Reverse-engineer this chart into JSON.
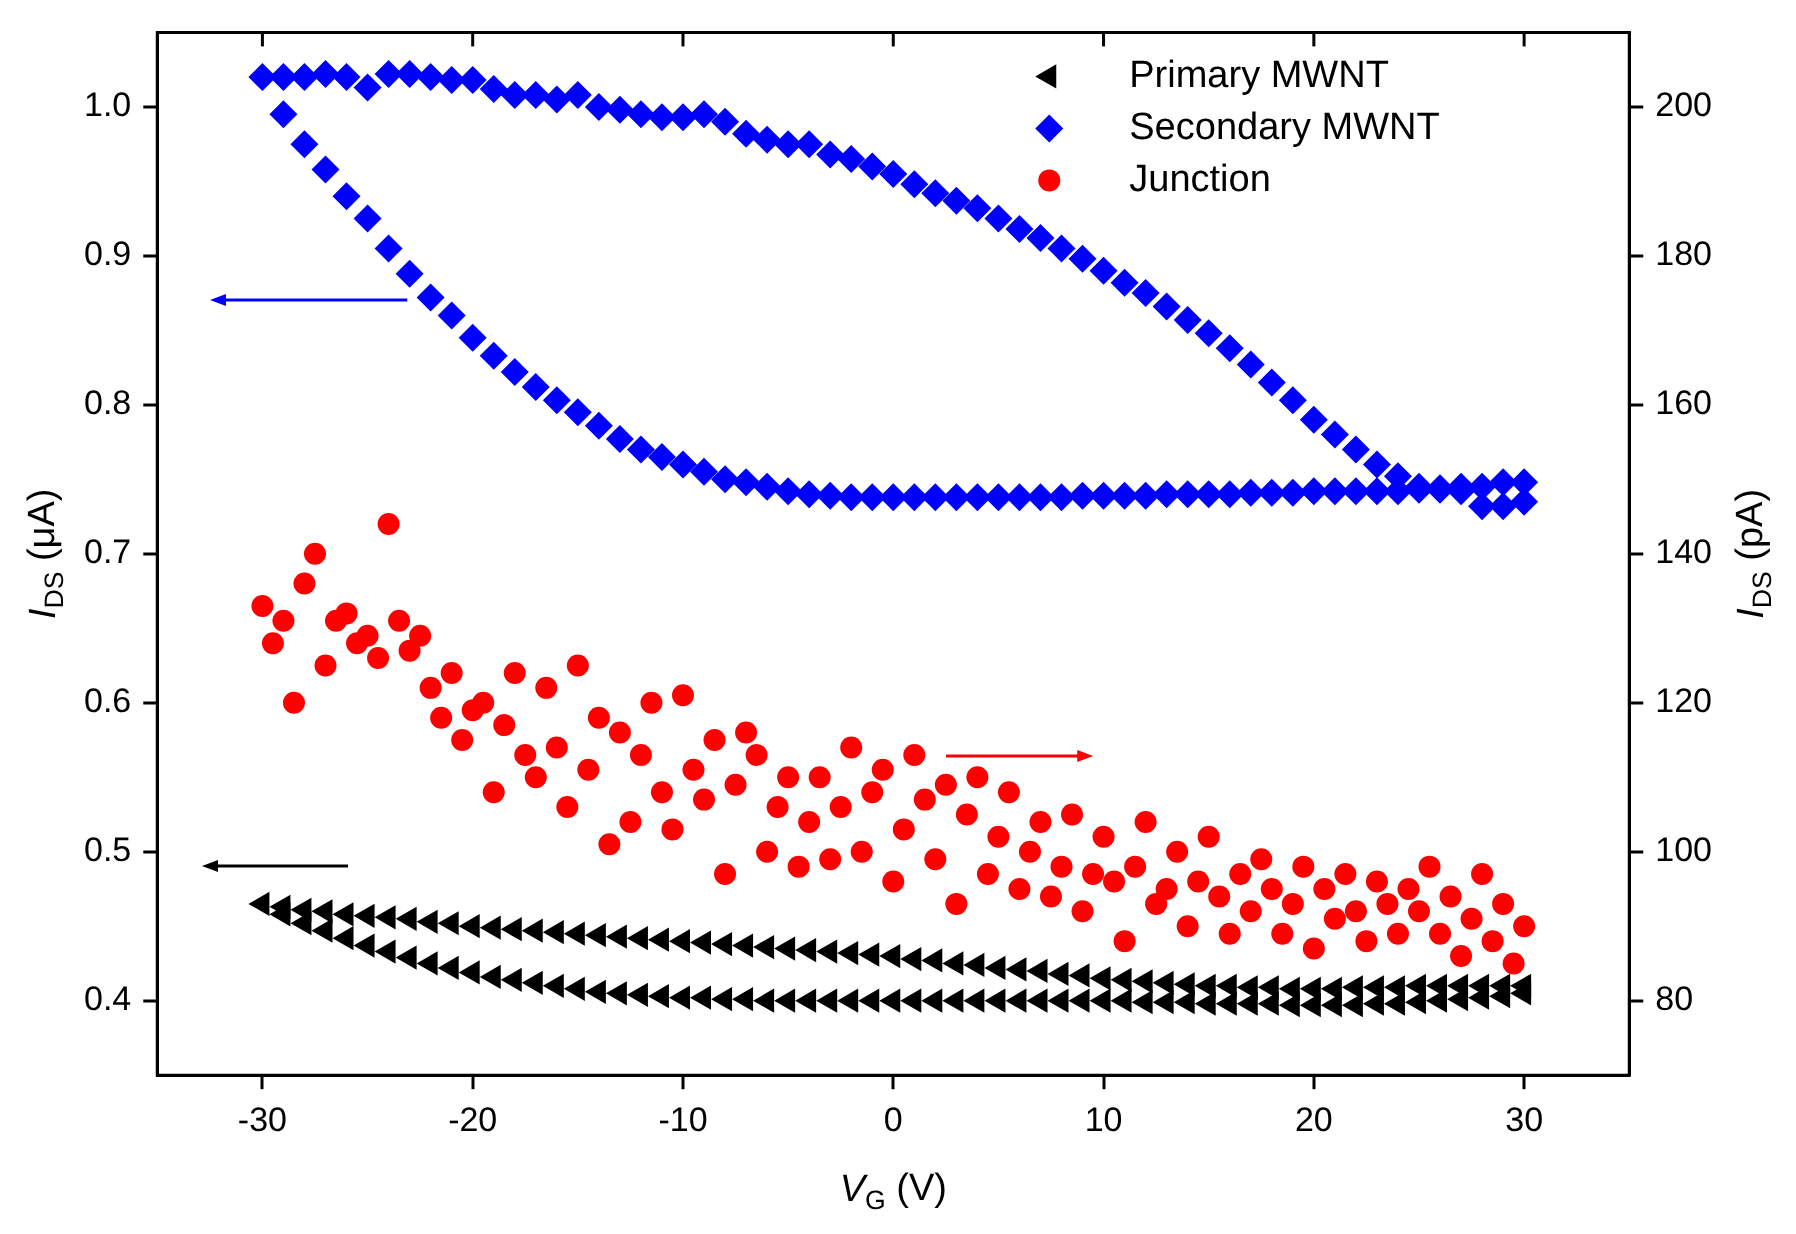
{
  "chart_data": {
    "type": "scatter",
    "xlabel": "V$_{G}$ (V)",
    "ylabel": "I$_{DS}$ (μA)",
    "y2label": "I$_{DS}$ (pA)",
    "xlim": [
      -35,
      35
    ],
    "xticks": [
      -30,
      -20,
      -10,
      0,
      10,
      20,
      30
    ],
    "ylim": [
      0.35,
      1.05
    ],
    "yticks": [
      0.4,
      0.5,
      0.6,
      0.7,
      0.8,
      0.9,
      {
        "value": 1,
        "label": "1.0"
      }
    ],
    "y2lim": [
      70,
      210
    ],
    "y2ticks": [
      80,
      100,
      120,
      140,
      160,
      180,
      200
    ],
    "grid": false,
    "legend": "top right",
    "series": [
      {
        "name": "Primary MWNT",
        "color": "#000000",
        "marker": "triangle",
        "axis": "y",
        "x": [
          -30,
          -29,
          -28,
          -27,
          -26,
          -25,
          -24,
          -23,
          -22,
          -21,
          -20,
          -19,
          -18,
          -17,
          -16,
          -15,
          -14,
          -13,
          -12,
          -11,
          -10,
          -9,
          -8,
          -7,
          -6,
          -5,
          -4,
          -3,
          -2,
          -1,
          0,
          1,
          2,
          3,
          4,
          5,
          6,
          7,
          8,
          9,
          10,
          11,
          12,
          13,
          14,
          15,
          16,
          17,
          18,
          19,
          20,
          21,
          22,
          23,
          24,
          25,
          26,
          27,
          28,
          29,
          30,
          -29,
          -28,
          -27,
          -26,
          -25,
          -24,
          -23,
          -22,
          -21,
          -20,
          -19,
          -18,
          -17,
          -16,
          -15,
          -14,
          -13,
          -12,
          -11,
          -10,
          -9,
          -8,
          -7,
          -6,
          -5,
          -4,
          -3,
          -2,
          -1,
          0,
          1,
          2,
          3,
          4,
          5,
          6,
          7,
          8,
          9,
          10,
          11,
          12,
          13,
          14,
          15,
          16,
          17,
          18,
          19,
          20,
          21,
          22,
          23,
          24,
          25,
          26,
          27,
          28,
          29,
          30
        ],
        "values": [
          0.465,
          0.463,
          0.461,
          0.46,
          0.458,
          0.457,
          0.456,
          0.455,
          0.453,
          0.452,
          0.45,
          0.449,
          0.448,
          0.447,
          0.446,
          0.445,
          0.444,
          0.443,
          0.442,
          0.441,
          0.44,
          0.439,
          0.438,
          0.437,
          0.436,
          0.435,
          0.434,
          0.433,
          0.432,
          0.431,
          0.43,
          0.428,
          0.427,
          0.425,
          0.424,
          0.422,
          0.421,
          0.42,
          0.418,
          0.417,
          0.415,
          0.414,
          0.413,
          0.412,
          0.411,
          0.41,
          0.41,
          0.409,
          0.409,
          0.408,
          0.408,
          0.408,
          0.409,
          0.409,
          0.409,
          0.41,
          0.41,
          0.41,
          0.41,
          0.41,
          0.41,
          0.458,
          0.452,
          0.447,
          0.442,
          0.437,
          0.433,
          0.429,
          0.425,
          0.422,
          0.419,
          0.416,
          0.414,
          0.412,
          0.41,
          0.408,
          0.406,
          0.405,
          0.404,
          0.403,
          0.402,
          0.402,
          0.401,
          0.401,
          0.4,
          0.4,
          0.4,
          0.4,
          0.4,
          0.4,
          0.4,
          0.4,
          0.4,
          0.4,
          0.4,
          0.4,
          0.4,
          0.4,
          0.4,
          0.4,
          0.4,
          0.4,
          0.399,
          0.399,
          0.399,
          0.398,
          0.398,
          0.398,
          0.398,
          0.397,
          0.397,
          0.397,
          0.397,
          0.398,
          0.398,
          0.399,
          0.4,
          0.401,
          0.402,
          0.403,
          0.405
        ]
      },
      {
        "name": "Secondary MWNT",
        "color": "#0000ff",
        "marker": "diamond",
        "axis": "y",
        "x": [
          -30,
          -29,
          -28,
          -27,
          -26,
          -25,
          -24,
          -23,
          -22,
          -21,
          -20,
          -19,
          -18,
          -17,
          -16,
          -15,
          -14,
          -13,
          -12,
          -11,
          -10,
          -9,
          -8,
          -7,
          -6,
          -5,
          -4,
          -3,
          -2,
          -1,
          0,
          1,
          2,
          3,
          4,
          5,
          6,
          7,
          8,
          9,
          10,
          11,
          12,
          13,
          14,
          15,
          16,
          17,
          18,
          19,
          20,
          21,
          22,
          23,
          24,
          25,
          26,
          27,
          28,
          29,
          30,
          -29,
          -28,
          -27,
          -26,
          -25,
          -24,
          -23,
          -22,
          -21,
          -20,
          -19,
          -18,
          -17,
          -16,
          -15,
          -14,
          -13,
          -12,
          -11,
          -10,
          -9,
          -8,
          -7,
          -6,
          -5,
          -4,
          -3,
          -2,
          -1,
          0,
          1,
          2,
          3,
          4,
          5,
          6,
          7,
          8,
          9,
          10,
          11,
          12,
          13,
          14,
          15,
          16,
          17,
          18,
          19,
          20,
          21,
          22,
          23,
          24,
          25,
          26,
          27,
          28,
          29,
          30
        ],
        "values": [
          1.02,
          1.02,
          1.02,
          1.022,
          1.02,
          1.013,
          1.022,
          1.022,
          1.02,
          1.018,
          1.018,
          1.012,
          1.008,
          1.008,
          1.005,
          1.008,
          1.0,
          0.998,
          0.995,
          0.993,
          0.993,
          0.995,
          0.99,
          0.982,
          0.978,
          0.975,
          0.975,
          0.968,
          0.965,
          0.96,
          0.955,
          0.948,
          0.942,
          0.937,
          0.932,
          0.925,
          0.918,
          0.912,
          0.905,
          0.898,
          0.89,
          0.882,
          0.875,
          0.866,
          0.857,
          0.848,
          0.838,
          0.827,
          0.815,
          0.803,
          0.79,
          0.78,
          0.77,
          0.76,
          0.752,
          0.745,
          0.743,
          0.742,
          0.732,
          0.732,
          0.735,
          0.995,
          0.975,
          0.958,
          0.94,
          0.925,
          0.905,
          0.888,
          0.872,
          0.86,
          0.845,
          0.833,
          0.822,
          0.812,
          0.803,
          0.795,
          0.786,
          0.777,
          0.77,
          0.765,
          0.76,
          0.755,
          0.75,
          0.748,
          0.745,
          0.742,
          0.74,
          0.739,
          0.738,
          0.738,
          0.738,
          0.738,
          0.738,
          0.738,
          0.738,
          0.738,
          0.738,
          0.738,
          0.738,
          0.739,
          0.739,
          0.739,
          0.739,
          0.74,
          0.74,
          0.74,
          0.74,
          0.741,
          0.741,
          0.741,
          0.742,
          0.742,
          0.742,
          0.742,
          0.742,
          0.743,
          0.744,
          0.745,
          0.745,
          0.748,
          0.748
        ]
      },
      {
        "name": "Junction",
        "color": "#ff0000",
        "marker": "circle",
        "axis": "y2",
        "x": [
          -30,
          -29.5,
          -29,
          -28.5,
          -28,
          -27.5,
          -27,
          -26.5,
          -26,
          -25.5,
          -25,
          -24.5,
          -24,
          -23.5,
          -23,
          -22.5,
          -22,
          -21.5,
          -21,
          -20.5,
          -20,
          -19.5,
          -19,
          -18.5,
          -18,
          -17.5,
          -17,
          -16.5,
          -16,
          -15.5,
          -15,
          -14.5,
          -14,
          -13.5,
          -13,
          -12.5,
          -12,
          -11.5,
          -11,
          -10.5,
          -10,
          -9.5,
          -9,
          -8.5,
          -8,
          -7.5,
          -7,
          -6.5,
          -6,
          -5.5,
          -5,
          -4.5,
          -4,
          -3.5,
          -3,
          -2.5,
          -2,
          -1.5,
          -1,
          -0.5,
          0,
          0.5,
          1,
          1.5,
          2,
          2.5,
          3,
          3.5,
          4,
          4.5,
          5,
          5.5,
          6,
          6.5,
          7,
          7.5,
          8,
          8.5,
          9,
          9.5,
          10,
          10.5,
          11,
          11.5,
          12,
          12.5,
          13,
          13.5,
          14,
          14.5,
          15,
          15.5,
          16,
          16.5,
          17,
          17.5,
          18,
          18.5,
          19,
          19.5,
          20,
          20.5,
          21,
          21.5,
          22,
          22.5,
          23,
          23.5,
          24,
          24.5,
          25,
          25.5,
          26,
          26.5,
          27,
          27.5,
          28,
          28.5,
          29,
          29.5,
          30
        ],
        "values": [
          133,
          128,
          131,
          120,
          136,
          140,
          125,
          131,
          132,
          128,
          129,
          126,
          144,
          131,
          127,
          129,
          122,
          118,
          124,
          115,
          119,
          120,
          108,
          117,
          124,
          113,
          110,
          122,
          114,
          106,
          125,
          111,
          118,
          101,
          116,
          104,
          113,
          120,
          108,
          103,
          121,
          111,
          107,
          115,
          97,
          109,
          116,
          113,
          100,
          106,
          110,
          98,
          104,
          110,
          99,
          106,
          114,
          100,
          108,
          111,
          96,
          103,
          113,
          107,
          99,
          109,
          93,
          105,
          110,
          97,
          102,
          108,
          95,
          100,
          104,
          94,
          98,
          105,
          92,
          97,
          102,
          96,
          88,
          98,
          104,
          93,
          95,
          100,
          90,
          96,
          102,
          94,
          89,
          97,
          92,
          99,
          95,
          89,
          93,
          98,
          87,
          95,
          91,
          97,
          92,
          88,
          96,
          93,
          89,
          95,
          92,
          98,
          89,
          94,
          86,
          91,
          97,
          88,
          93,
          85,
          90
        ]
      }
    ]
  }
}
